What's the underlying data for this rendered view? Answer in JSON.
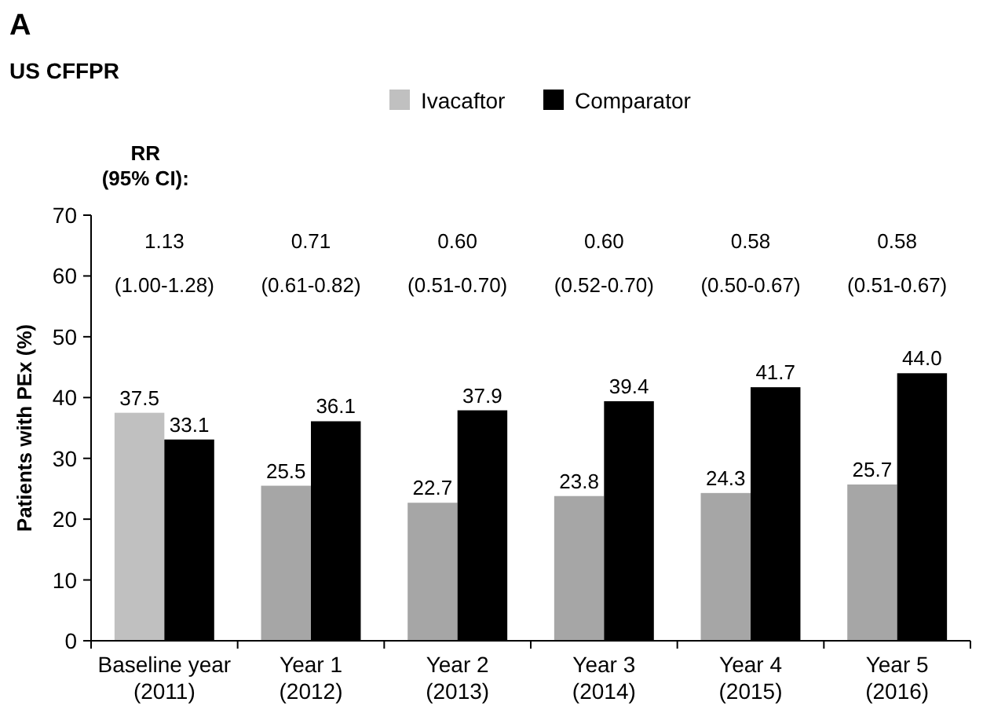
{
  "chart_data": {
    "type": "bar",
    "title": "A",
    "subtitle": "US CFFPR",
    "ylabel": "Patients with PEx (%)",
    "categories": [
      "Baseline year\n(2011)",
      "Year 1\n(2012)",
      "Year 2\n(2013)",
      "Year 3\n(2014)",
      "Year 4\n(2015)",
      "Year 5\n(2016)"
    ],
    "series": [
      {
        "name": "Ivacaftor",
        "color": "#c0c0c0",
        "colors": [
          "#c0c0c0",
          "#a6a6a6",
          "#a6a6a6",
          "#a6a6a6",
          "#a6a6a6",
          "#a6a6a6"
        ],
        "values": [
          37.5,
          25.5,
          22.7,
          23.8,
          24.3,
          25.7
        ],
        "value_labels": [
          "37.5",
          "25.5",
          "22.7",
          "23.8",
          "24.3",
          "25.7"
        ]
      },
      {
        "name": "Comparator",
        "color": "#000000",
        "values": [
          33.1,
          36.1,
          37.9,
          39.4,
          41.7,
          44.0
        ],
        "value_labels": [
          "33.1",
          "36.1",
          "37.9",
          "39.4",
          "41.7",
          "44.0"
        ]
      }
    ],
    "ylim": [
      0,
      70
    ],
    "yticks": [
      0,
      10,
      20,
      30,
      40,
      50,
      60,
      70
    ],
    "legend": "top",
    "annotations": [
      "RR\n(95% CI):",
      "1.13\n(1.00-1.28)",
      "0.71\n(0.61-0.82)",
      "0.60\n(0.51-0.70)",
      "0.60\n(0.52-0.70)",
      "0.58\n(0.50-0.67)",
      "0.58\n(0.51-0.67)"
    ]
  }
}
